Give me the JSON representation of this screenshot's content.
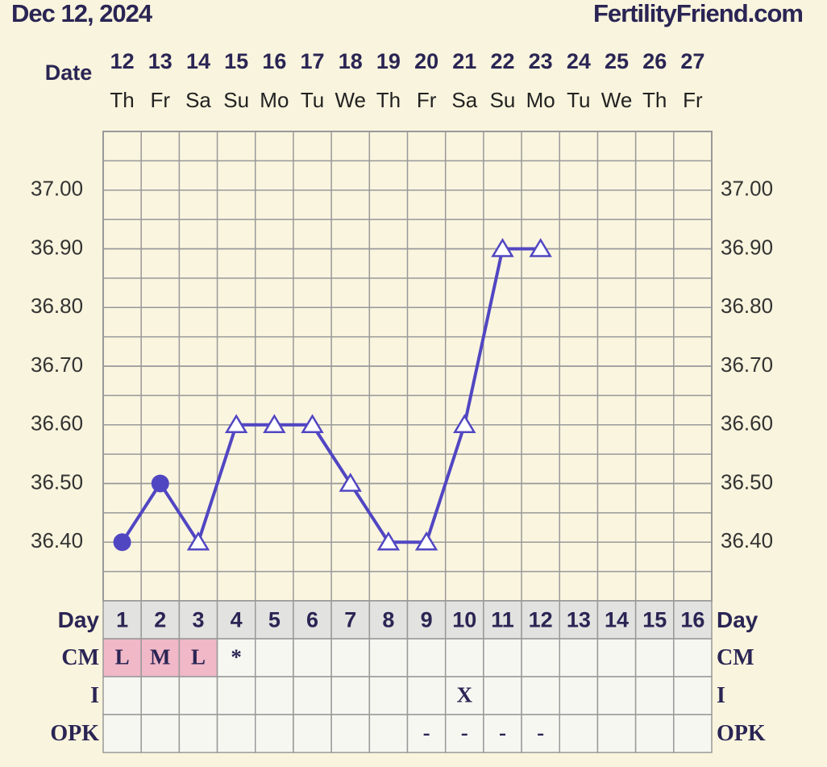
{
  "header": {
    "date": "Dec 12, 2024",
    "site": "FertilityFriend.com"
  },
  "chart_data": {
    "type": "line",
    "date_label": "Date",
    "categories": [
      "12",
      "13",
      "14",
      "15",
      "16",
      "17",
      "18",
      "19",
      "20",
      "21",
      "22",
      "23",
      "24",
      "25",
      "26",
      "27"
    ],
    "weekdays": [
      "Th",
      "Fr",
      "Sa",
      "Su",
      "Mo",
      "Tu",
      "We",
      "Th",
      "Fr",
      "Sa",
      "Su",
      "Mo",
      "Tu",
      "We",
      "Th",
      "Fr"
    ],
    "series": [
      {
        "color": "#5146c2",
        "values": [
          36.4,
          36.5,
          36.4,
          36.6,
          36.6,
          36.6,
          36.5,
          36.4,
          36.4,
          36.6,
          36.9,
          36.9,
          null,
          null,
          null,
          null
        ],
        "markers": [
          "circle",
          "circle",
          "triangle",
          "triangle",
          "triangle",
          "triangle",
          "triangle",
          "triangle",
          "triangle",
          "triangle",
          "triangle",
          "triangle",
          null,
          null,
          null,
          null
        ]
      }
    ],
    "ylim": [
      36.3,
      37.1
    ],
    "yticks": [
      {
        "value": 36.4,
        "label": "36.40"
      },
      {
        "value": 36.5,
        "label": "36.50"
      },
      {
        "value": 36.6,
        "label": "36.60"
      },
      {
        "value": 36.7,
        "label": "36.70"
      },
      {
        "value": 36.8,
        "label": "36.80"
      },
      {
        "value": 36.9,
        "label": "36.90"
      },
      {
        "value": 37.0,
        "label": "37.00"
      }
    ],
    "grid": true,
    "rows": [
      {
        "label": "Day",
        "cells": [
          "1",
          "2",
          "3",
          "4",
          "5",
          "6",
          "7",
          "8",
          "9",
          "10",
          "11",
          "12",
          "13",
          "14",
          "15",
          "16"
        ]
      },
      {
        "label": "CM",
        "cells": [
          "L",
          "M",
          "L",
          "*",
          null,
          null,
          null,
          null,
          null,
          null,
          null,
          null,
          null,
          null,
          null,
          null
        ]
      },
      {
        "label": "I",
        "cells": [
          null,
          null,
          null,
          null,
          null,
          null,
          null,
          null,
          null,
          "X",
          null,
          null,
          null,
          null,
          null,
          null
        ]
      },
      {
        "label": "OPK",
        "cells": [
          null,
          null,
          null,
          null,
          null,
          null,
          null,
          null,
          "-",
          "-",
          "-",
          "-",
          null,
          null,
          null,
          null
        ]
      }
    ]
  }
}
